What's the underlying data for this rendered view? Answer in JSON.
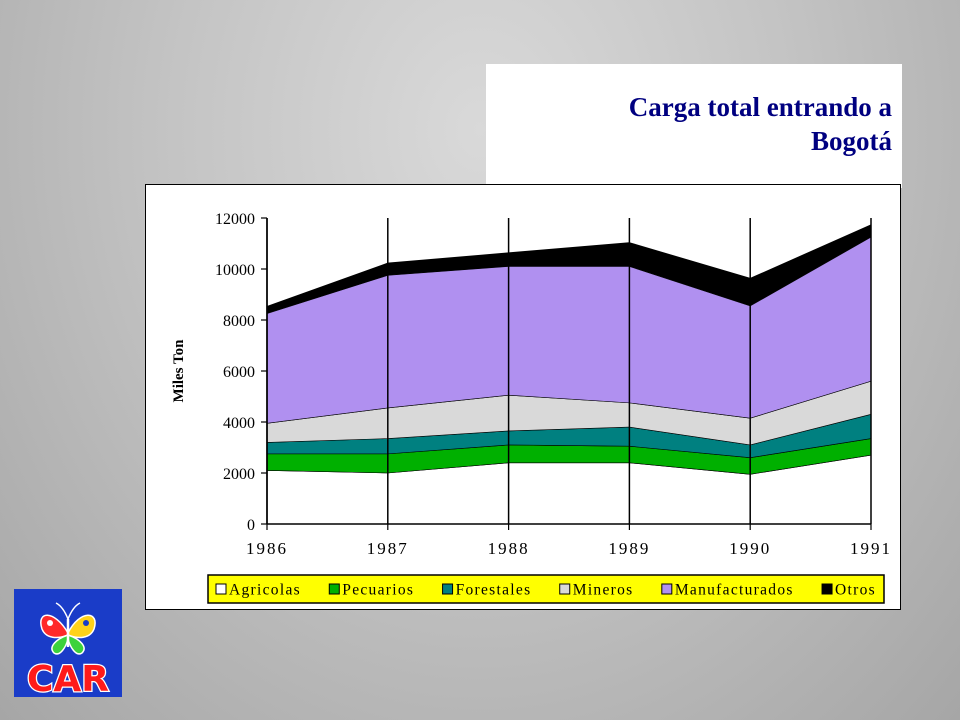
{
  "slide": {
    "title": "Carga total entrando a\nBogotá",
    "logo_text": "CAR"
  },
  "colors": {
    "Agricolas": "#ffffff",
    "Pecuarios": "#00b000",
    "Forestales": "#008080",
    "Mineros": "#d9d9d9",
    "Manufacturados": "#b090f0",
    "Otros": "#000000",
    "title": "#000080",
    "logo_bg": "#1a3cc8",
    "logo_text": "#ff1a1a"
  },
  "chart_data": {
    "type": "area",
    "stacked": true,
    "ylabel": "Miles Ton",
    "xlabel": "",
    "x": [
      "1986",
      "1987",
      "1988",
      "1989",
      "1990",
      "1991"
    ],
    "yticks": [
      "0",
      "2000",
      "4000",
      "6000",
      "8000",
      "10000",
      "12000"
    ],
    "ylim": [
      0,
      12000
    ],
    "grid": "vertical lines at each year",
    "legend_position": "bottom",
    "series": [
      {
        "name": "Agricolas",
        "values": [
          2100,
          2000,
          2400,
          2400,
          1950,
          2700
        ]
      },
      {
        "name": "Pecuarios",
        "values": [
          650,
          750,
          700,
          650,
          650,
          650
        ]
      },
      {
        "name": "Forestales",
        "values": [
          450,
          600,
          550,
          750,
          500,
          950
        ]
      },
      {
        "name": "Mineros",
        "values": [
          750,
          1200,
          1400,
          950,
          1050,
          1300
        ]
      },
      {
        "name": "Manufacturados",
        "values": [
          4300,
          5200,
          5050,
          5350,
          4400,
          5650
        ]
      },
      {
        "name": "Otros",
        "values": [
          300,
          500,
          550,
          950,
          1100,
          500
        ]
      }
    ]
  }
}
